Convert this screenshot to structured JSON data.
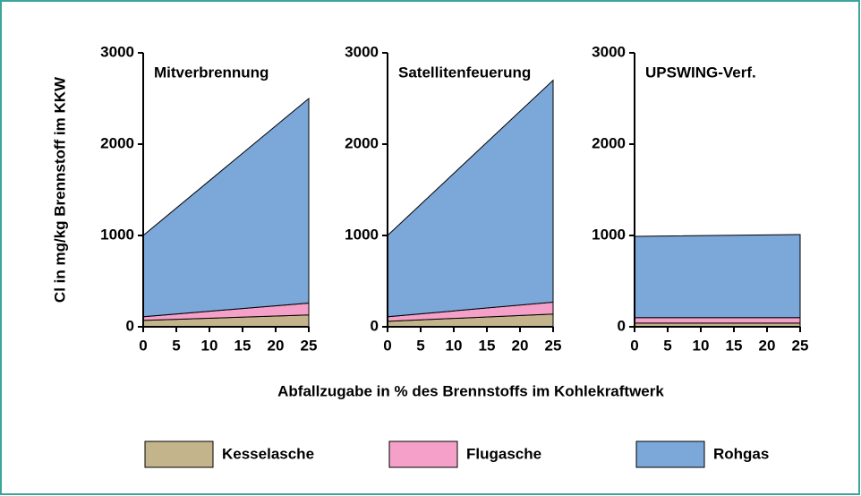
{
  "figure": {
    "xlabel": "Abfallzugabe in % des Brennstoffs im Kohlekraftwerk",
    "ylabel": "Cl in mg/kg Brennstoff im KKW"
  },
  "chart_data": [
    {
      "type": "area",
      "stacked": true,
      "title": "Mitverbrennung",
      "x": [
        0,
        25
      ],
      "xlim": [
        0,
        25
      ],
      "xticks": [
        0,
        5,
        10,
        15,
        20,
        25
      ],
      "ylim": [
        0,
        3000
      ],
      "yticks": [
        0,
        1000,
        2000,
        3000
      ],
      "series": [
        {
          "name": "Kesselasche",
          "color": "#c4b48c",
          "values": [
            70,
            130
          ]
        },
        {
          "name": "Flugasche",
          "color": "#f4a0c8",
          "values": [
            40,
            130
          ]
        },
        {
          "name": "Rohgas",
          "color": "#7ba7d9",
          "values": [
            890,
            2240
          ]
        }
      ]
    },
    {
      "type": "area",
      "stacked": true,
      "title": "Satellitenfeuerung",
      "x": [
        0,
        25
      ],
      "xlim": [
        0,
        25
      ],
      "xticks": [
        0,
        5,
        10,
        15,
        20,
        25
      ],
      "ylim": [
        0,
        3000
      ],
      "yticks": [
        0,
        1000,
        2000,
        3000
      ],
      "series": [
        {
          "name": "Kesselasche",
          "color": "#c4b48c",
          "values": [
            60,
            140
          ]
        },
        {
          "name": "Flugasche",
          "color": "#f4a0c8",
          "values": [
            50,
            130
          ]
        },
        {
          "name": "Rohgas",
          "color": "#7ba7d9",
          "values": [
            890,
            2430
          ]
        }
      ]
    },
    {
      "type": "area",
      "stacked": true,
      "title": "UPSWING-Verf.",
      "x": [
        0,
        25
      ],
      "xlim": [
        0,
        25
      ],
      "xticks": [
        0,
        5,
        10,
        15,
        20,
        25
      ],
      "ylim": [
        0,
        3000
      ],
      "yticks": [
        0,
        1000,
        2000,
        3000
      ],
      "series": [
        {
          "name": "Kesselasche",
          "color": "#c4b48c",
          "values": [
            40,
            40
          ]
        },
        {
          "name": "Flugasche",
          "color": "#f4a0c8",
          "values": [
            60,
            60
          ]
        },
        {
          "name": "Rohgas",
          "color": "#7ba7d9",
          "values": [
            890,
            910
          ]
        }
      ]
    }
  ]
}
